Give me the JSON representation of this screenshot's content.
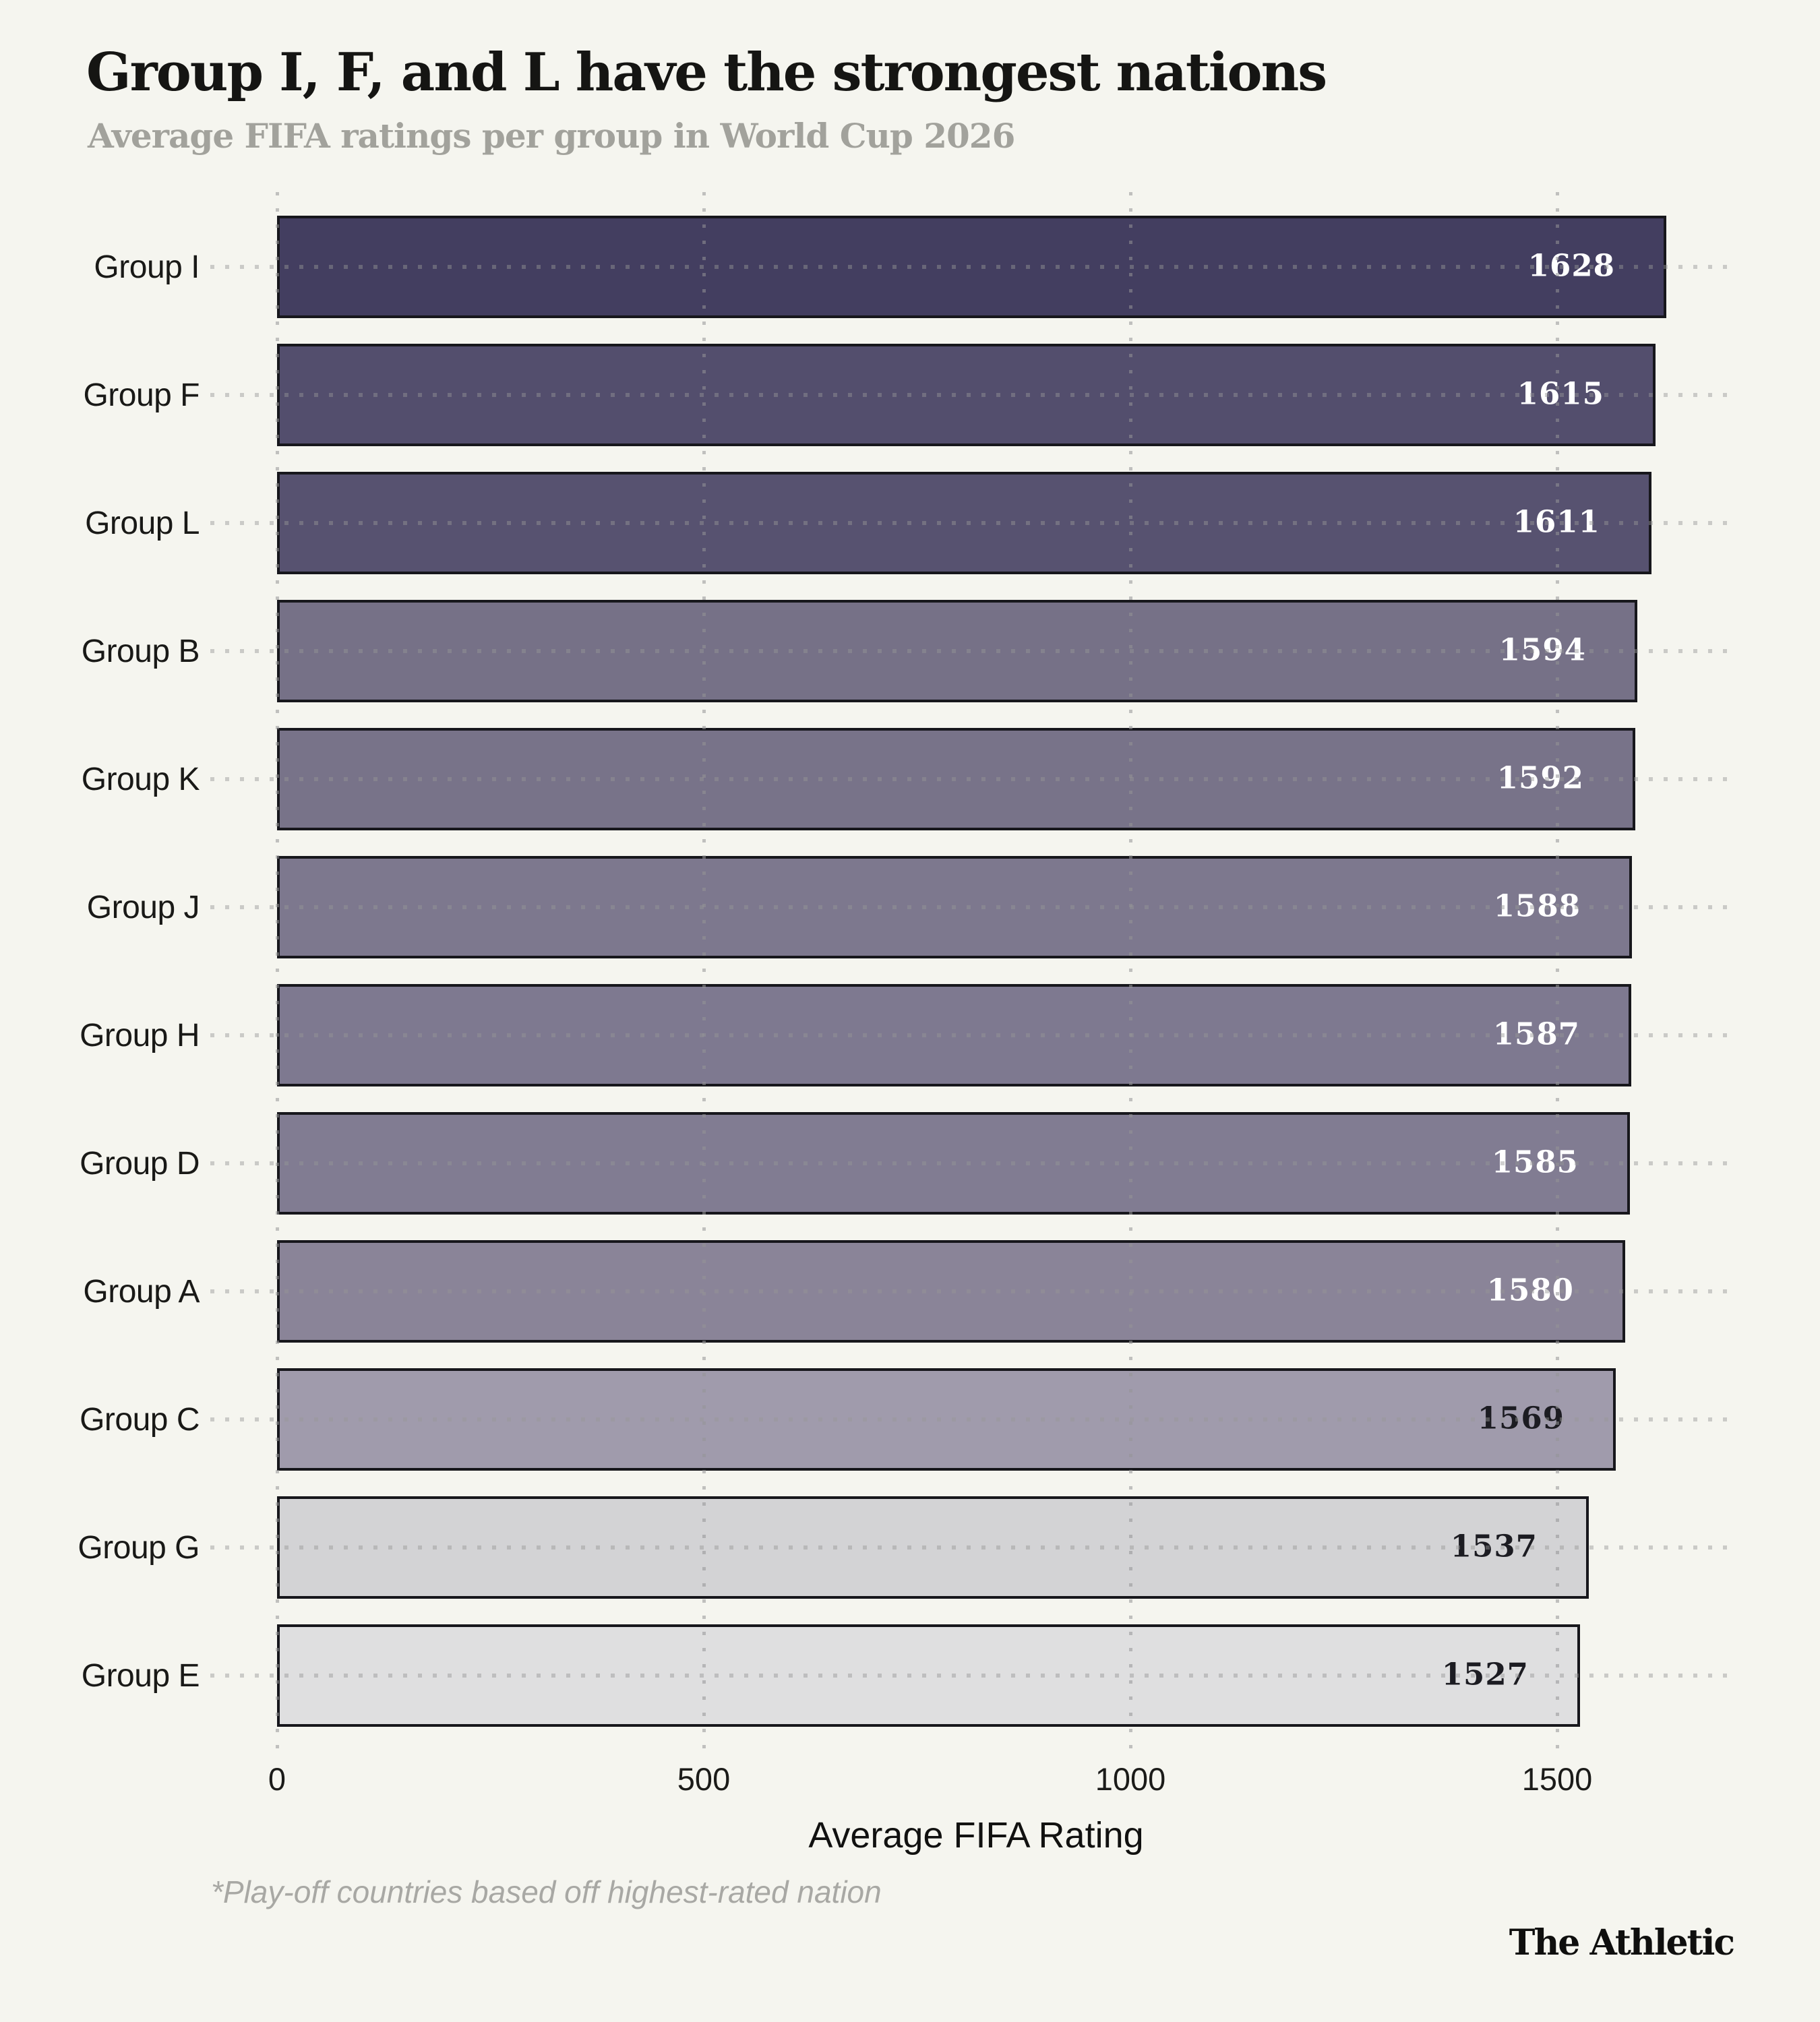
{
  "header": {
    "title": "Group I, F, and L have the strongest nations",
    "subtitle": "Average FIFA ratings per group in World Cup 2026"
  },
  "chart_data": {
    "type": "bar",
    "orientation": "horizontal",
    "title": "Group I, F, and L have the strongest nations",
    "subtitle": "Average FIFA ratings per group in World Cup 2026",
    "categories": [
      "Group I",
      "Group F",
      "Group L",
      "Group B",
      "Group K",
      "Group J",
      "Group H",
      "Group D",
      "Group A",
      "Group C",
      "Group G",
      "Group E"
    ],
    "values": [
      1628,
      1615,
      1611,
      1594,
      1592,
      1588,
      1587,
      1585,
      1580,
      1569,
      1537,
      1527
    ],
    "bar_colors": [
      "#433e60",
      "#534e6d",
      "#575270",
      "#767187",
      "#787389",
      "#7d788e",
      "#7e7990",
      "#817c92",
      "#8a8498",
      "#a09bac",
      "#d3d3d5",
      "#dfdfe0"
    ],
    "value_text_colors": [
      "#ffffff",
      "#ffffff",
      "#ffffff",
      "#ffffff",
      "#ffffff",
      "#ffffff",
      "#ffffff",
      "#ffffff",
      "#ffffff",
      "#1c1c22",
      "#1c1c22",
      "#1c1c22"
    ],
    "xlabel": "Average FIFA Rating",
    "x_ticks": [
      "0",
      "500",
      "1000",
      "1500"
    ],
    "x_tick_values": [
      0,
      500,
      1000,
      1500
    ],
    "xlim": [
      0,
      1707
    ],
    "grid": "dotted-vertical",
    "legend": "none",
    "value_labels_shown": true
  },
  "footnote": "*Play-off countries based off highest-rated nation",
  "branding": {
    "logo_text": "The Athletic"
  },
  "colors": {
    "background": "#f5f5ef",
    "bar_border": "#17171c",
    "grid_dot": "#c9c9c3",
    "title": "#151513",
    "subtitle": "#a2a29c",
    "footnote": "#a8a8a4",
    "axis_text": "#1b1b19"
  }
}
